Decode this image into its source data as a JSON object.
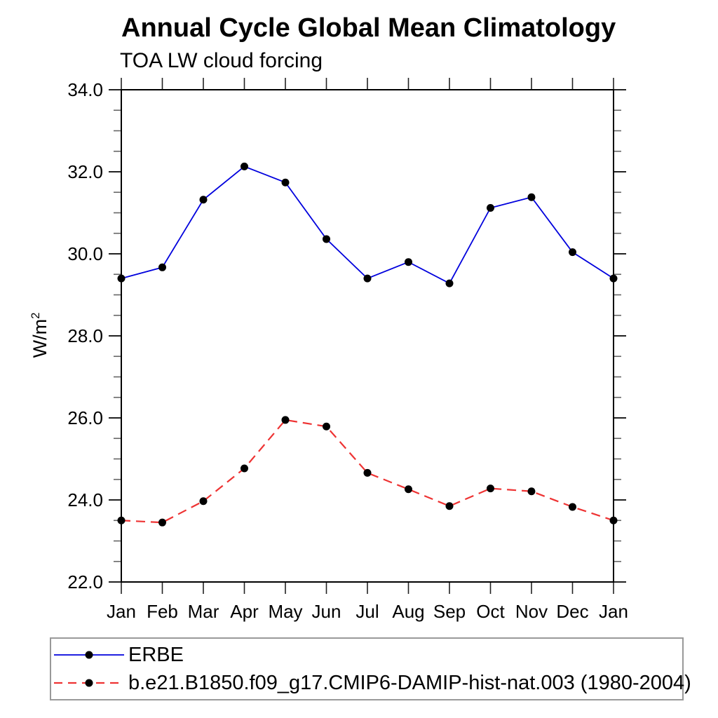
{
  "page": {
    "background": "#ffffff"
  },
  "chart_data": {
    "type": "line",
    "title": "Annual Cycle Global Mean Climatology",
    "subtitle": "TOA LW cloud forcing",
    "ylabel": "W/m²",
    "ylabel_base": "W/m",
    "ylabel_sup": "2",
    "xlabel": "",
    "categories": [
      "Jan",
      "Feb",
      "Mar",
      "Apr",
      "May",
      "Jun",
      "Jul",
      "Aug",
      "Sep",
      "Oct",
      "Nov",
      "Dec",
      "Jan"
    ],
    "ylim": [
      22.0,
      34.0
    ],
    "y_major_tick_step": 2.0,
    "y_minor_tick_step": 0.5,
    "y_tick_labels": [
      "22.0",
      "24.0",
      "26.0",
      "28.0",
      "30.0",
      "32.0",
      "34.0"
    ],
    "grid": false,
    "legend_position": "bottom-left-box",
    "axis_color": "#000000",
    "series": [
      {
        "name": "ERBE",
        "color": "#0000dd",
        "line_style": "solid",
        "marker": "filled-circle",
        "marker_color": "#000000",
        "values": [
          29.4,
          29.67,
          31.32,
          32.13,
          31.74,
          30.36,
          29.4,
          29.8,
          29.28,
          31.12,
          31.38,
          30.04,
          29.4
        ]
      },
      {
        "name": "b.e21.B1850.f09_g17.CMIP6-DAMIP-hist-nat.003 (1980-2004)",
        "color": "#ee3333",
        "line_style": "dashed",
        "marker": "filled-circle",
        "marker_color": "#000000",
        "values": [
          23.5,
          23.45,
          23.97,
          24.77,
          25.95,
          25.79,
          24.66,
          24.26,
          23.85,
          24.28,
          24.21,
          23.83,
          23.5
        ]
      }
    ]
  }
}
